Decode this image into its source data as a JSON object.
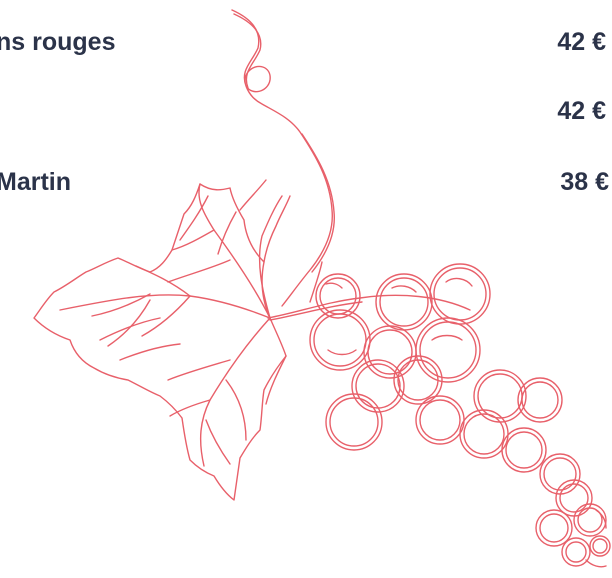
{
  "menu": {
    "items": [
      {
        "name": "ns rouges",
        "price": "42 €"
      },
      {
        "name": "",
        "price": "42 €"
      },
      {
        "name": "Martin",
        "price": "38 €"
      }
    ]
  },
  "illustration": {
    "icon": "grape-vine-icon",
    "color": "#e8606a"
  },
  "colors": {
    "text": "#2b3349",
    "background": "#ffffff"
  }
}
